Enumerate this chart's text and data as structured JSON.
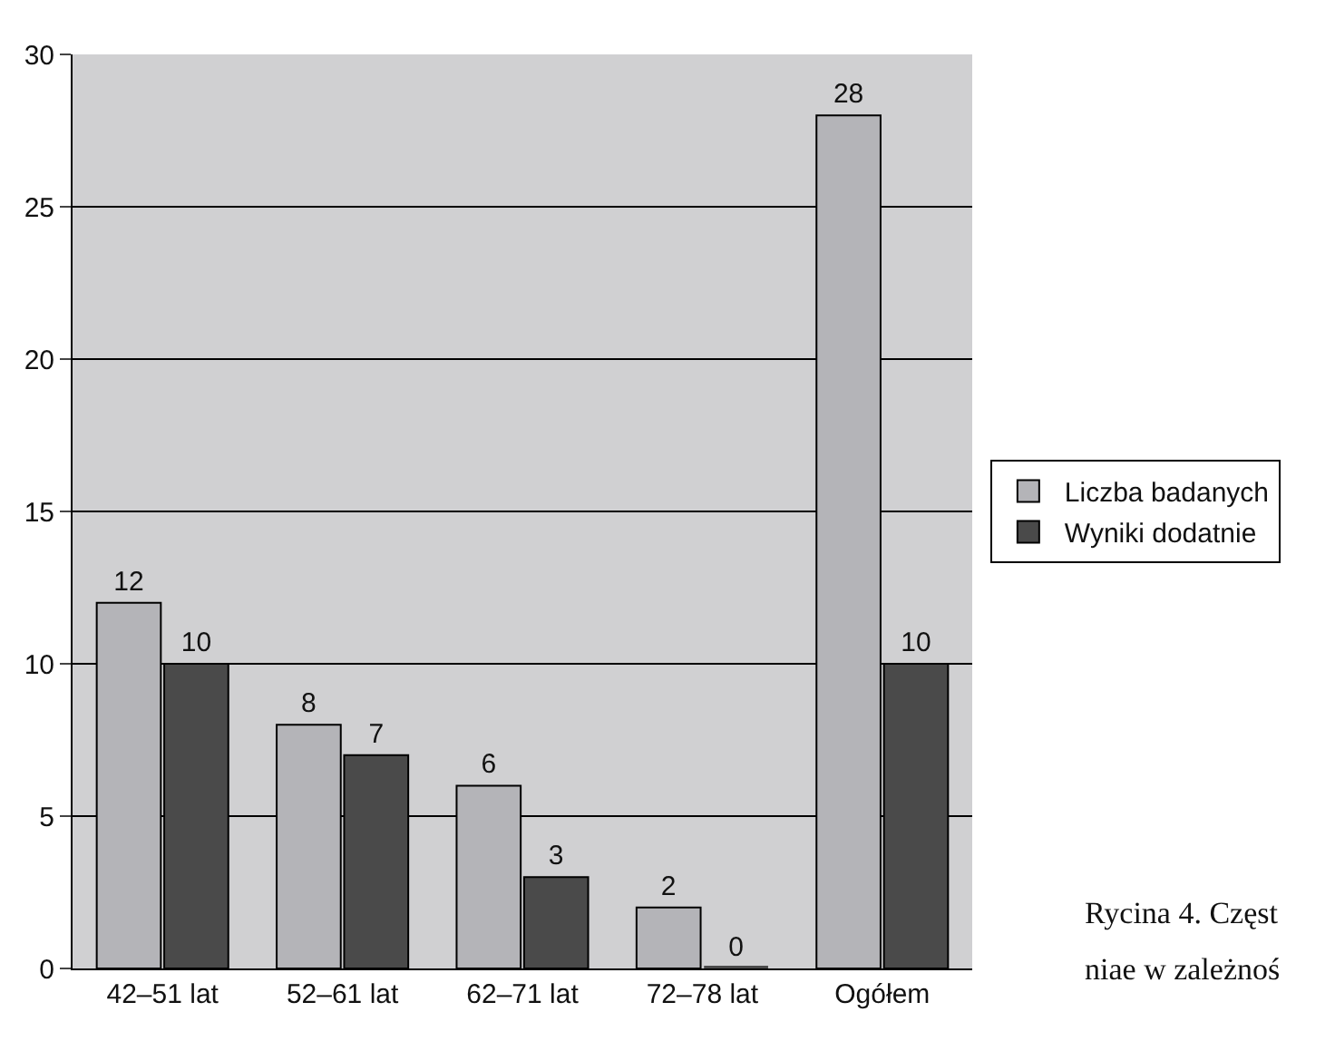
{
  "chart_data": {
    "type": "bar",
    "categories": [
      "42–51 lat",
      "52–61 lat",
      "62–71 lat",
      "72–78 lat",
      "Ogółem"
    ],
    "series": [
      {
        "name": "Liczba badanych",
        "color": "#b4b4b8",
        "values": [
          12,
          8,
          6,
          2,
          28
        ]
      },
      {
        "name": "Wyniki dodatnie",
        "color": "#4a4a4a",
        "values": [
          10,
          7,
          3,
          0,
          10
        ]
      }
    ],
    "ylim": [
      0,
      30
    ],
    "yticks": [
      0,
      5,
      10,
      15,
      20,
      25,
      30
    ],
    "grid": "y",
    "legend": "right",
    "data_labels": true,
    "annotations": [
      "Rycina 4. Częst",
      "niae w zależnoś"
    ]
  }
}
